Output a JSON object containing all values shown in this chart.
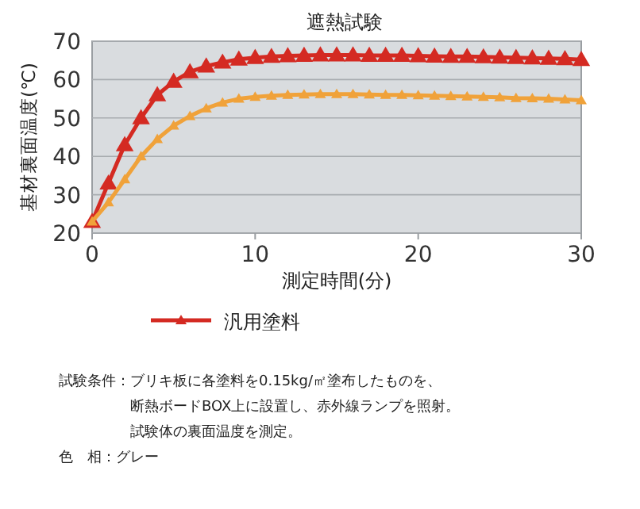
{
  "chart_data": {
    "type": "line",
    "title": "遮熱試験",
    "xlabel": "測定時間(分)",
    "ylabel": "基材裏面温度(℃)",
    "x": [
      0,
      1,
      2,
      3,
      4,
      5,
      6,
      7,
      8,
      9,
      10,
      11,
      12,
      13,
      14,
      15,
      16,
      17,
      18,
      19,
      20,
      21,
      22,
      23,
      24,
      25,
      26,
      27,
      28,
      29,
      30
    ],
    "series": [
      {
        "name": "汎用塗料",
        "color": "#d42a22",
        "values": [
          23,
          33,
          43,
          50,
          56,
          59.5,
          62,
          63.5,
          64.5,
          65.3,
          65.7,
          66,
          66.2,
          66.3,
          66.4,
          66.4,
          66.4,
          66.3,
          66.3,
          66.3,
          66.2,
          66.1,
          66,
          66,
          65.9,
          65.8,
          65.7,
          65.6,
          65.5,
          65.4,
          65.2
        ]
      },
      {
        "color": "#f0a23a",
        "values": [
          23,
          28,
          34,
          40,
          44.5,
          48,
          50.5,
          52.5,
          54,
          55,
          55.5,
          55.8,
          56,
          56.1,
          56.2,
          56.2,
          56.2,
          56.1,
          56,
          56,
          55.9,
          55.8,
          55.7,
          55.6,
          55.5,
          55.4,
          55.2,
          55.1,
          55,
          54.8,
          54.6
        ]
      }
    ],
    "xlim": [
      0,
      30
    ],
    "ylim": [
      20,
      70
    ],
    "xticks": [
      0,
      10,
      20,
      30
    ],
    "yticks": [
      20,
      30,
      40,
      50,
      60,
      70
    ],
    "grid": "y",
    "legend": "bottom",
    "marker": "triangle",
    "line_style": "solid",
    "annotations": [
      "試験条件：ブリキ板に各塗料を0.15kg/㎡塗布したものを、",
      "断熱ボードBOX上に設置し、赤外線ランプを照射。",
      "試験体の裏面温度を測定。",
      "色　相：グレー"
    ]
  }
}
